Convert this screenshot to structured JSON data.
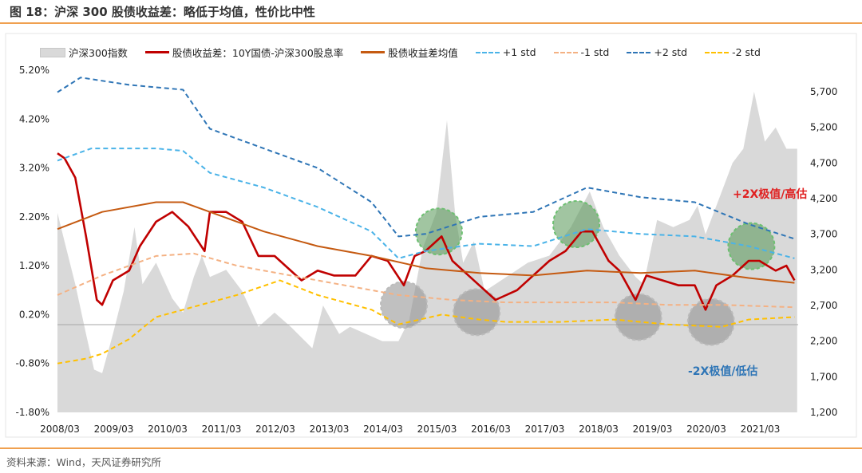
{
  "title": "图 18：沪深 300 股债收益差：略低于均值，性价比中性",
  "source": "资料来源：Wind，天风证券研究所",
  "chart_data": {
    "type": "line",
    "title": "图 18：沪深 300 股债收益差：略低于均值，性价比中性",
    "x_tick_labels": [
      "2008/03",
      "2009/03",
      "2010/03",
      "2011/03",
      "2012/03",
      "2013/03",
      "2014/03",
      "2015/03",
      "2016/03",
      "2017/03",
      "2018/03",
      "2019/03",
      "2020/03",
      "2021/03"
    ],
    "y_left": {
      "ticks": [
        "5.20%",
        "4.20%",
        "3.20%",
        "2.20%",
        "1.20%",
        "0.20%",
        "-0.80%",
        "-1.80%"
      ],
      "range": [
        -1.8,
        5.2
      ]
    },
    "y_right": {
      "ticks": [
        "5,700",
        "5,200",
        "4,700",
        "4,200",
        "3,700",
        "3,200",
        "2,700",
        "2,200",
        "1,700",
        "1,200"
      ],
      "range": [
        1200,
        5700
      ]
    },
    "x_range": [
      2008.17,
      2021.9
    ],
    "legend_position": "top",
    "series": [
      {
        "name": "沪深300指数",
        "type": "area",
        "axis": "right",
        "color": "#d9d9d9",
        "x": [
          2008.17,
          2008.3,
          2008.5,
          2008.7,
          2008.85,
          2009.0,
          2009.2,
          2009.4,
          2009.6,
          2009.75,
          2010.0,
          2010.3,
          2010.5,
          2010.7,
          2010.85,
          2011.0,
          2011.3,
          2011.6,
          2011.9,
          2012.2,
          2012.5,
          2012.9,
          2013.1,
          2013.4,
          2013.6,
          2013.9,
          2014.2,
          2014.5,
          2014.7,
          2014.95,
          2015.2,
          2015.4,
          2015.55,
          2015.7,
          2015.9,
          2016.1,
          2016.5,
          2016.9,
          2017.3,
          2017.7,
          2018.05,
          2018.3,
          2018.6,
          2018.9,
          2019.05,
          2019.3,
          2019.6,
          2019.9,
          2020.05,
          2020.2,
          2020.5,
          2020.7,
          2020.9,
          2021.1,
          2021.3,
          2021.5,
          2021.7,
          2021.9
        ],
        "values": [
          4000,
          3600,
          3000,
          2300,
          1800,
          1750,
          2300,
          2900,
          3800,
          3000,
          3300,
          2800,
          2600,
          3100,
          3400,
          3100,
          3200,
          2900,
          2400,
          2600,
          2400,
          2100,
          2700,
          2300,
          2400,
          2300,
          2200,
          2200,
          2500,
          3500,
          4000,
          5300,
          4000,
          3300,
          3600,
          2900,
          3100,
          3300,
          3400,
          3800,
          4300,
          3800,
          3400,
          3100,
          3000,
          3900,
          3800,
          3900,
          4100,
          3700,
          4300,
          4700,
          4900,
          5700,
          5000,
          5200,
          4900,
          4900
        ]
      },
      {
        "name": "股债收益差：10Y国债-沪深300股息率",
        "type": "line",
        "axis": "left",
        "color": "#c00000",
        "x": [
          2008.17,
          2008.3,
          2008.5,
          2008.7,
          2008.9,
          2009.0,
          2009.2,
          2009.5,
          2009.7,
          2010.0,
          2010.3,
          2010.6,
          2010.9,
          2011.0,
          2011.3,
          2011.6,
          2011.9,
          2012.2,
          2012.4,
          2012.7,
          2013.0,
          2013.3,
          2013.7,
          2014.0,
          2014.3,
          2014.6,
          2014.8,
          2015.0,
          2015.3,
          2015.5,
          2015.8,
          2016.0,
          2016.3,
          2016.7,
          2017.0,
          2017.3,
          2017.6,
          2017.9,
          2018.1,
          2018.4,
          2018.6,
          2018.9,
          2019.1,
          2019.4,
          2019.7,
          2020.0,
          2020.2,
          2020.4,
          2020.7,
          2021.0,
          2021.2,
          2021.5,
          2021.7,
          2021.85
        ],
        "values": [
          3.5,
          3.4,
          3.0,
          1.8,
          0.5,
          0.4,
          0.9,
          1.1,
          1.6,
          2.1,
          2.3,
          2.0,
          1.5,
          2.3,
          2.3,
          2.1,
          1.4,
          1.4,
          1.2,
          0.9,
          1.1,
          1.0,
          1.0,
          1.4,
          1.3,
          0.8,
          1.4,
          1.5,
          1.8,
          1.3,
          1.0,
          0.8,
          0.5,
          0.7,
          1.0,
          1.3,
          1.5,
          1.9,
          1.9,
          1.3,
          1.1,
          0.5,
          1.0,
          0.9,
          0.8,
          0.8,
          0.3,
          0.8,
          1.0,
          1.3,
          1.3,
          1.1,
          1.2,
          0.9
        ]
      },
      {
        "name": "股债收益差均值",
        "type": "line",
        "axis": "left",
        "color": "#c55a11",
        "x": [
          2008.17,
          2009.0,
          2010.0,
          2010.5,
          2011.0,
          2012.0,
          2013.0,
          2014.0,
          2015.0,
          2016.0,
          2017.0,
          2018.0,
          2019.0,
          2020.0,
          2021.0,
          2021.85
        ],
        "values": [
          1.95,
          2.3,
          2.5,
          2.5,
          2.3,
          1.9,
          1.6,
          1.4,
          1.15,
          1.05,
          1.0,
          1.1,
          1.05,
          1.1,
          0.95,
          0.85
        ]
      },
      {
        "name": "+1 std",
        "type": "line",
        "dash": true,
        "axis": "left",
        "color": "#4ab3e8",
        "x": [
          2008.17,
          2008.8,
          2010.0,
          2010.5,
          2011.0,
          2012.0,
          2013.0,
          2014.0,
          2014.5,
          2015.0,
          2016.0,
          2017.0,
          2018.0,
          2019.0,
          2020.0,
          2021.0,
          2021.85
        ],
        "values": [
          3.35,
          3.6,
          3.6,
          3.55,
          3.1,
          2.8,
          2.4,
          1.9,
          1.35,
          1.5,
          1.65,
          1.6,
          1.95,
          1.85,
          1.8,
          1.6,
          1.35
        ]
      },
      {
        "name": "-1 std",
        "type": "line",
        "dash": true,
        "axis": "left",
        "color": "#f4b183",
        "x": [
          2008.17,
          2009.0,
          2010.0,
          2010.7,
          2011.5,
          2012.5,
          2013.5,
          2014.5,
          2015.5,
          2016.5,
          2017.5,
          2018.5,
          2019.5,
          2020.5,
          2021.85
        ],
        "values": [
          0.6,
          1.0,
          1.4,
          1.45,
          1.2,
          1.0,
          0.8,
          0.6,
          0.5,
          0.45,
          0.45,
          0.45,
          0.4,
          0.4,
          0.35
        ]
      },
      {
        "name": "+2 std",
        "type": "line",
        "dash": true,
        "axis": "left",
        "color": "#2e75b6",
        "x": [
          2008.17,
          2008.6,
          2009.5,
          2010.5,
          2011.0,
          2012.0,
          2013.0,
          2014.0,
          2014.5,
          2015.0,
          2016.0,
          2017.0,
          2018.0,
          2019.0,
          2020.0,
          2021.0,
          2021.85
        ],
        "values": [
          4.75,
          5.05,
          4.9,
          4.8,
          4.0,
          3.6,
          3.2,
          2.5,
          1.8,
          1.85,
          2.2,
          2.3,
          2.8,
          2.6,
          2.5,
          2.05,
          1.75
        ]
      },
      {
        "name": "-2 std",
        "type": "line",
        "dash": true,
        "axis": "left",
        "color": "#ffc000",
        "x": [
          2008.17,
          2008.7,
          2009.0,
          2009.5,
          2010.0,
          2010.5,
          2011.5,
          2012.3,
          2013.0,
          2014.0,
          2014.5,
          2015.3,
          2016.0,
          2016.5,
          2017.5,
          2018.5,
          2019.5,
          2020.5,
          2021.0,
          2021.85
        ],
        "values": [
          -0.8,
          -0.7,
          -0.6,
          -0.3,
          0.15,
          0.3,
          0.6,
          0.9,
          0.6,
          0.3,
          0.0,
          0.2,
          0.1,
          0.05,
          0.05,
          0.1,
          0.0,
          -0.05,
          0.1,
          0.15
        ]
      }
    ],
    "annotations": [
      {
        "text": "+2X极值/高估",
        "color": "#e02020"
      },
      {
        "text": "-2X极值/低估",
        "color": "#2e75b6"
      }
    ],
    "highlight_circles": [
      {
        "kind": "high",
        "x": 2015.25,
        "y": 1.9
      },
      {
        "kind": "high",
        "x": 2017.8,
        "y": 2.05
      },
      {
        "kind": "high",
        "x": 2021.05,
        "y": 1.6
      },
      {
        "kind": "low",
        "x": 2014.6,
        "y": 0.4
      },
      {
        "kind": "low",
        "x": 2015.95,
        "y": 0.25
      },
      {
        "kind": "low",
        "x": 2018.95,
        "y": 0.15
      },
      {
        "kind": "low",
        "x": 2020.3,
        "y": 0.05
      }
    ]
  }
}
